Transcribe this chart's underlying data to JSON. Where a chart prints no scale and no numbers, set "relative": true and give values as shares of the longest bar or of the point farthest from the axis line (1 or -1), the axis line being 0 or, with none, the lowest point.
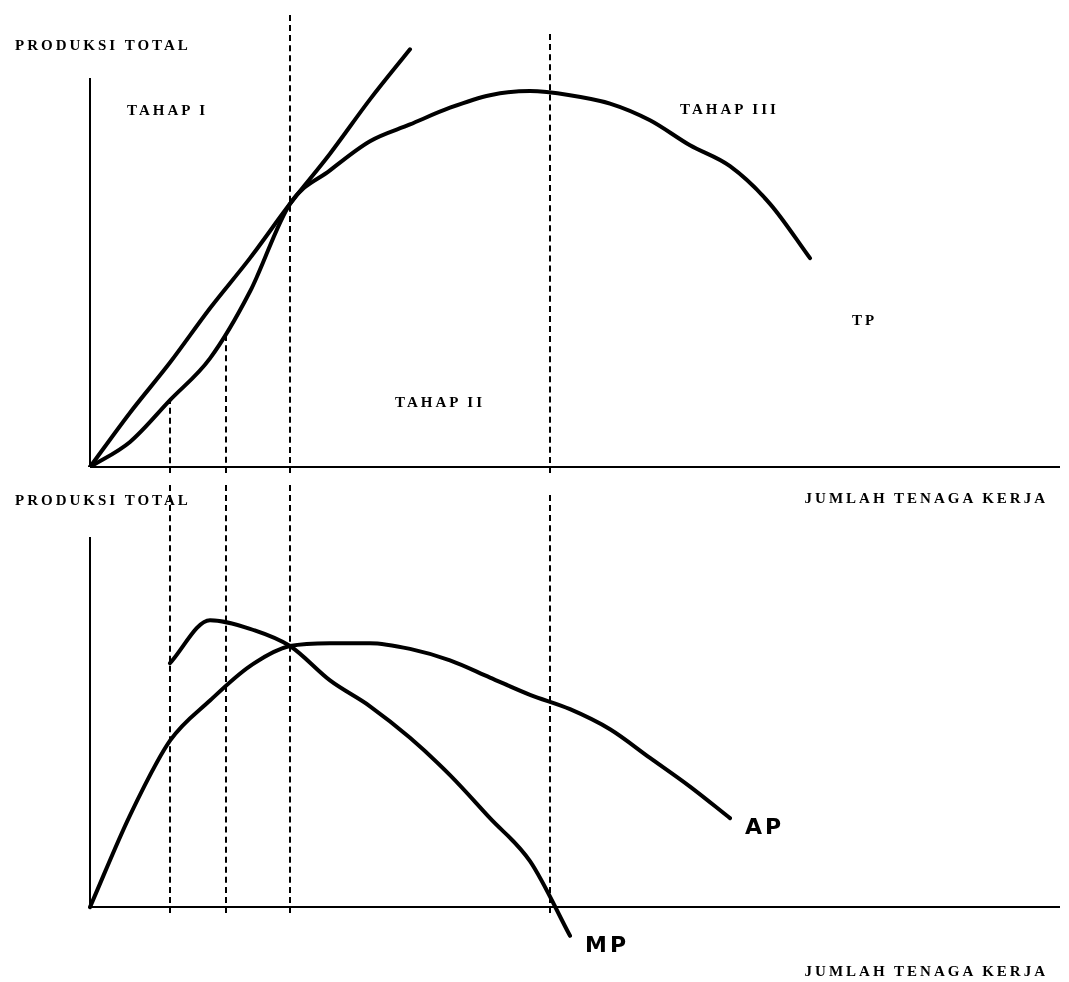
{
  "chart_data": [
    {
      "type": "line",
      "ylabel": "PRODUKSI TOTAL",
      "xlabel": "JUMLAH TENAGA KERJA",
      "annotations": [
        "TAHAP I",
        "TAHAP III",
        "TAHAP II"
      ],
      "relative": true,
      "legend": false,
      "grid": false,
      "marker": "none",
      "line_style": "solid",
      "categories": [
        null,
        null,
        null,
        null,
        null,
        null,
        null,
        null,
        null,
        null,
        null,
        null,
        null,
        null,
        null,
        null,
        null,
        null,
        null,
        null,
        null,
        null,
        null,
        null,
        null
      ],
      "series": [
        {
          "color": "#000000",
          "values": [
            0,
            0.13,
            0.25,
            0.38,
            0.5,
            0.63,
            0.75,
            0.88,
            1,
            null,
            null,
            null,
            null,
            null,
            null,
            null,
            null,
            null,
            null,
            null,
            null,
            null,
            null,
            null,
            null
          ]
        },
        {
          "name": "TP",
          "color": "#000000",
          "values": [
            0,
            0.06,
            0.16,
            0.26,
            0.42,
            0.63,
            0.71,
            0.78,
            0.82,
            0.86,
            0.89,
            0.9,
            0.89,
            0.87,
            0.83,
            0.77,
            0.72,
            0.63,
            0.5,
            null,
            null,
            null,
            null,
            null,
            null
          ]
        }
      ]
    },
    {
      "type": "line",
      "ylabel": "PRODUKSI TOTAL",
      "xlabel": "JUMLAH TENAGA KERJA",
      "relative": true,
      "legend": false,
      "grid": false,
      "marker": "none",
      "line_style": "solid",
      "categories": [
        null,
        null,
        null,
        null,
        null,
        null,
        null,
        null,
        null,
        null,
        null,
        null,
        null,
        null,
        null,
        null,
        null,
        null,
        null,
        null,
        null,
        null,
        null,
        null,
        null
      ],
      "series": [
        {
          "name": "AP",
          "color": "#000000",
          "values": [
            0,
            0.32,
            0.58,
            0.72,
            0.84,
            0.91,
            0.92,
            0.92,
            0.9,
            0.86,
            0.8,
            0.74,
            0.69,
            0.62,
            0.52,
            0.42,
            0.31,
            null,
            null,
            null,
            null,
            null,
            null,
            null,
            null
          ]
        },
        {
          "name": "MP",
          "color": "#000000",
          "values": [
            null,
            null,
            0.85,
            1,
            0.97,
            0.91,
            0.79,
            0.7,
            0.59,
            0.46,
            0.31,
            0.16,
            -0.1,
            null,
            null,
            null,
            null,
            null,
            null,
            null,
            null,
            null,
            null,
            null,
            null
          ]
        }
      ]
    }
  ]
}
